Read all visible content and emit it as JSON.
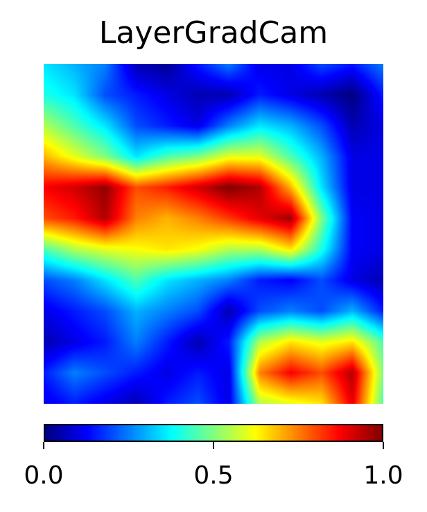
{
  "chart_data": {
    "type": "heatmap",
    "title": "LayerGradCam",
    "colormap": "jet",
    "colorbar": {
      "range": [
        0.0,
        1.0
      ],
      "ticks": [
        0.0,
        0.5,
        1.0
      ],
      "tick_labels": [
        "0.0",
        "0.5",
        "1.0"
      ],
      "orientation": "horizontal"
    },
    "grid": false,
    "axes_visible": false,
    "values": [
      [
        0.35,
        0.3,
        0.25,
        0.05,
        0.02,
        0.15,
        0.25,
        0.1,
        0.1,
        0.2,
        0.15,
        0.25
      ],
      [
        0.4,
        0.35,
        0.2,
        0.15,
        0.1,
        0.05,
        0.05,
        0.15,
        0.1,
        0.05,
        0.0,
        0.15
      ],
      [
        0.55,
        0.45,
        0.35,
        0.2,
        0.15,
        0.1,
        0.25,
        0.35,
        0.3,
        0.2,
        0.05,
        0.1
      ],
      [
        0.7,
        0.6,
        0.5,
        0.35,
        0.45,
        0.5,
        0.6,
        0.6,
        0.45,
        0.3,
        0.1,
        0.1
      ],
      [
        0.88,
        0.92,
        0.98,
        0.8,
        0.85,
        0.92,
        1.0,
        0.95,
        0.7,
        0.35,
        0.1,
        0.1
      ],
      [
        0.8,
        0.85,
        0.95,
        0.75,
        0.7,
        0.75,
        0.82,
        0.9,
        0.97,
        0.5,
        0.12,
        0.1
      ],
      [
        0.45,
        0.55,
        0.6,
        0.62,
        0.65,
        0.62,
        0.55,
        0.55,
        0.65,
        0.4,
        0.12,
        0.1
      ],
      [
        0.2,
        0.25,
        0.35,
        0.45,
        0.35,
        0.3,
        0.25,
        0.15,
        0.12,
        0.2,
        0.1,
        0.05
      ],
      [
        0.1,
        0.15,
        0.2,
        0.3,
        0.25,
        0.2,
        0.05,
        0.2,
        0.25,
        0.2,
        0.3,
        0.15
      ],
      [
        0.05,
        0.1,
        0.15,
        0.25,
        0.15,
        0.05,
        0.15,
        0.55,
        0.65,
        0.6,
        0.65,
        0.45
      ],
      [
        0.15,
        0.25,
        0.2,
        0.15,
        0.1,
        0.15,
        0.1,
        0.75,
        0.88,
        0.8,
        0.95,
        0.5
      ],
      [
        0.1,
        0.15,
        0.1,
        0.05,
        0.15,
        0.2,
        0.1,
        0.55,
        0.6,
        0.65,
        0.9,
        0.45
      ]
    ]
  }
}
